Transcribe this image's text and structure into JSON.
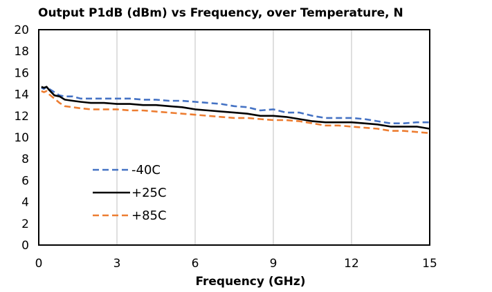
{
  "chart_data": {
    "type": "line",
    "title": "Output P1dB (dBm) vs Frequency, over Temperature, N",
    "xlabel": "Frequency (GHz)",
    "ylabel": "",
    "xlim": [
      0,
      15
    ],
    "ylim": [
      0,
      20
    ],
    "xticks": [
      0,
      3,
      6,
      9,
      12,
      15
    ],
    "yticks": [
      0,
      2,
      4,
      6,
      8,
      10,
      12,
      14,
      16,
      18,
      20
    ],
    "grid": "vertical",
    "legend_position": "bottom-left",
    "series": [
      {
        "name": "-40C",
        "color": "#4472C4",
        "dash": "dashed",
        "x": [
          0.1,
          0.2,
          0.3,
          0.4,
          0.6,
          0.8,
          1.0,
          1.3,
          1.6,
          2.0,
          2.5,
          3.0,
          3.5,
          4.0,
          4.5,
          5.0,
          5.5,
          6.0,
          6.5,
          7.0,
          7.5,
          8.0,
          8.5,
          9.0,
          9.5,
          10.0,
          10.5,
          11.0,
          11.5,
          12.0,
          12.5,
          13.0,
          13.5,
          14.0,
          14.5,
          15.0
        ],
        "y": [
          14.6,
          14.5,
          14.7,
          14.5,
          14.2,
          13.9,
          13.8,
          13.8,
          13.6,
          13.6,
          13.6,
          13.6,
          13.6,
          13.5,
          13.5,
          13.4,
          13.4,
          13.3,
          13.2,
          13.1,
          12.9,
          12.8,
          12.5,
          12.6,
          12.3,
          12.3,
          12.0,
          11.8,
          11.8,
          11.8,
          11.7,
          11.5,
          11.3,
          11.3,
          11.4,
          11.4
        ]
      },
      {
        "name": "+25C",
        "color": "#000000",
        "dash": "solid",
        "x": [
          0.1,
          0.2,
          0.3,
          0.4,
          0.6,
          0.8,
          1.0,
          1.3,
          1.6,
          2.0,
          2.5,
          3.0,
          3.5,
          4.0,
          4.5,
          5.0,
          5.5,
          6.0,
          6.5,
          7.0,
          7.5,
          8.0,
          8.5,
          9.0,
          9.5,
          10.0,
          10.5,
          11.0,
          11.5,
          12.0,
          12.5,
          13.0,
          13.5,
          14.0,
          14.5,
          15.0
        ],
        "y": [
          14.7,
          14.6,
          14.7,
          14.4,
          13.9,
          13.8,
          13.5,
          13.4,
          13.3,
          13.2,
          13.2,
          13.1,
          13.1,
          13.0,
          13.0,
          12.9,
          12.8,
          12.6,
          12.5,
          12.4,
          12.3,
          12.2,
          12.0,
          12.0,
          11.9,
          11.7,
          11.5,
          11.4,
          11.4,
          11.4,
          11.3,
          11.2,
          11.0,
          11.0,
          11.0,
          10.8
        ]
      },
      {
        "name": "+85C",
        "color": "#ED7D31",
        "dash": "dashed",
        "x": [
          0.1,
          0.2,
          0.3,
          0.4,
          0.6,
          0.8,
          1.0,
          1.3,
          1.6,
          2.0,
          2.5,
          3.0,
          3.5,
          4.0,
          4.5,
          5.0,
          5.5,
          6.0,
          6.5,
          7.0,
          7.5,
          8.0,
          8.5,
          9.0,
          9.5,
          10.0,
          10.5,
          11.0,
          11.5,
          12.0,
          12.5,
          13.0,
          13.5,
          14.0,
          14.5,
          15.0
        ],
        "y": [
          14.3,
          14.2,
          14.3,
          14.0,
          13.6,
          13.2,
          12.9,
          12.8,
          12.7,
          12.6,
          12.6,
          12.6,
          12.5,
          12.5,
          12.4,
          12.3,
          12.2,
          12.1,
          12.0,
          11.9,
          11.8,
          11.8,
          11.7,
          11.6,
          11.6,
          11.5,
          11.3,
          11.1,
          11.1,
          11.0,
          10.9,
          10.8,
          10.6,
          10.6,
          10.5,
          10.4
        ]
      }
    ]
  }
}
